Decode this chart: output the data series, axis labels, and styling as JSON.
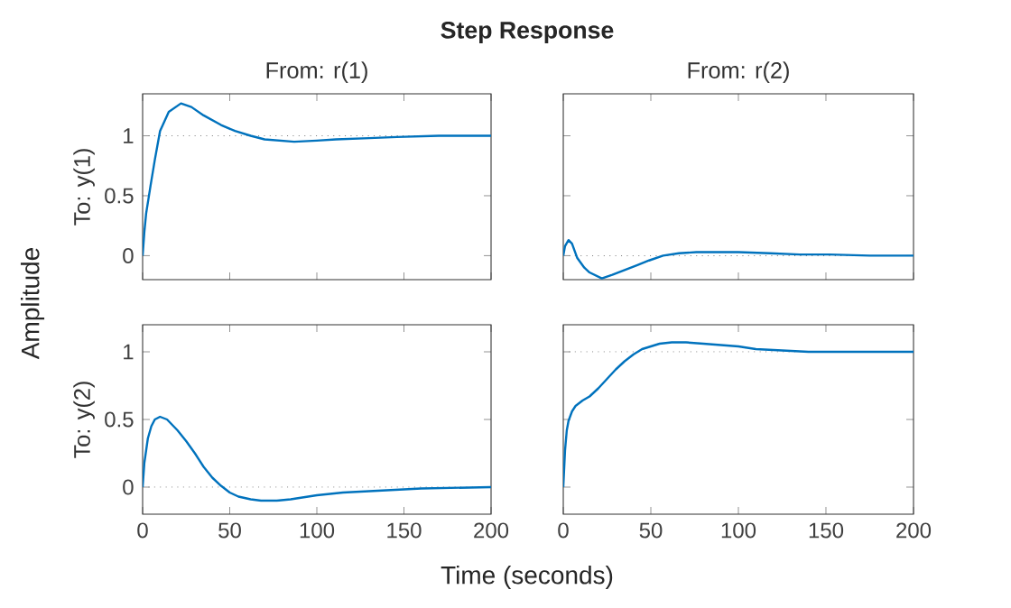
{
  "chart_data": [
    {
      "type": "line",
      "title": "From: r(1)",
      "ylabel": "To: y(1)",
      "annotations": [
        "Step Response",
        "Amplitude",
        "Time (seconds)"
      ],
      "xlim": [
        0,
        200
      ],
      "ylim": [
        -0.2,
        1.35
      ],
      "xticks": [
        0,
        50,
        100,
        150,
        200
      ],
      "yticks": [
        0,
        0.5,
        1
      ],
      "tick_labels": "y",
      "ref_lines": [
        {
          "axis": "y",
          "value": 1,
          "color": "#808080",
          "line_style": "dotted"
        }
      ],
      "series": [
        {
          "color": "#0072bd",
          "x": [
            0,
            1,
            2,
            4.5,
            7,
            10,
            15,
            22,
            28,
            35,
            45,
            53,
            62,
            70,
            87,
            100,
            111,
            130,
            146,
            170,
            200
          ],
          "values": [
            0,
            0.2,
            0.35,
            0.58,
            0.8,
            1.04,
            1.2,
            1.27,
            1.24,
            1.17,
            1.09,
            1.04,
            1.0,
            0.97,
            0.95,
            0.96,
            0.97,
            0.98,
            0.99,
            1.0,
            1.0
          ]
        }
      ]
    },
    {
      "type": "line",
      "title": "From: r(2)",
      "xlim": [
        0,
        200
      ],
      "ylim": [
        -0.2,
        1.35
      ],
      "xticks": [
        0,
        50,
        100,
        150,
        200
      ],
      "yticks": [
        0,
        0.5,
        1
      ],
      "tick_labels": false,
      "ref_lines": [
        {
          "axis": "y",
          "value": 0,
          "color": "#808080",
          "line_style": "dotted"
        }
      ],
      "series": [
        {
          "color": "#0072bd",
          "x": [
            0,
            1,
            3,
            5,
            8,
            12,
            15,
            22,
            28,
            35,
            42,
            49,
            57,
            66,
            76,
            87,
            100,
            118,
            135,
            152,
            175,
            200
          ],
          "values": [
            0,
            0.08,
            0.13,
            0.1,
            -0.02,
            -0.1,
            -0.14,
            -0.19,
            -0.16,
            -0.12,
            -0.08,
            -0.04,
            0,
            0.02,
            0.03,
            0.03,
            0.03,
            0.02,
            0.01,
            0.01,
            0,
            0
          ]
        }
      ]
    },
    {
      "type": "line",
      "ylabel": "To: y(2)",
      "xlim": [
        0,
        200
      ],
      "ylim": [
        -0.2,
        1.2
      ],
      "xticks": [
        0,
        50,
        100,
        150,
        200
      ],
      "yticks": [
        0,
        0.5,
        1
      ],
      "ref_lines": [
        {
          "axis": "y",
          "value": 0,
          "color": "#808080",
          "line_style": "dotted"
        }
      ],
      "series": [
        {
          "color": "#0072bd",
          "x": [
            0,
            1,
            3,
            5,
            7,
            10,
            14,
            20,
            25,
            30,
            35,
            40,
            45,
            50,
            55,
            62,
            68,
            77,
            85,
            100,
            115,
            130,
            160,
            200
          ],
          "values": [
            0,
            0.18,
            0.36,
            0.45,
            0.5,
            0.52,
            0.5,
            0.42,
            0.34,
            0.25,
            0.15,
            0.07,
            0.01,
            -0.04,
            -0.07,
            -0.09,
            -0.1,
            -0.1,
            -0.09,
            -0.06,
            -0.04,
            -0.03,
            -0.01,
            0
          ]
        }
      ]
    },
    {
      "type": "line",
      "xlim": [
        0,
        200
      ],
      "ylim": [
        -0.2,
        1.2
      ],
      "xticks": [
        0,
        50,
        100,
        150,
        200
      ],
      "yticks": [
        0,
        0.5,
        1
      ],
      "tick_labels": "x",
      "ref_lines": [
        {
          "axis": "y",
          "value": 1,
          "color": "#808080",
          "line_style": "dotted"
        }
      ],
      "series": [
        {
          "color": "#0072bd",
          "x": [
            0,
            1,
            2,
            3,
            5,
            7,
            11,
            15,
            20,
            25,
            30,
            35,
            40,
            45,
            50,
            55,
            62,
            70,
            80,
            90,
            100,
            110,
            125,
            140,
            170,
            200
          ],
          "values": [
            0,
            0.27,
            0.42,
            0.49,
            0.56,
            0.6,
            0.64,
            0.67,
            0.73,
            0.8,
            0.87,
            0.93,
            0.98,
            1.02,
            1.04,
            1.06,
            1.07,
            1.07,
            1.06,
            1.05,
            1.04,
            1.02,
            1.01,
            1.0,
            1.0,
            1.0
          ]
        }
      ]
    }
  ]
}
